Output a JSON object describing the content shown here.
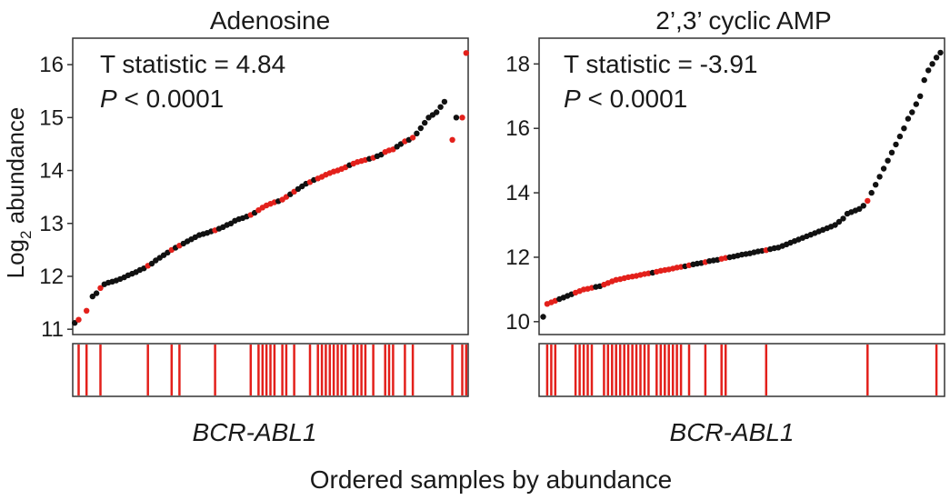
{
  "figure": {
    "ylabel_main": "Log",
    "ylabel_sub": "2",
    "ylabel_rest": " abundance",
    "xlabel": "Ordered samples by abundance"
  },
  "colors": {
    "positive": "#e3201b",
    "negative": "#111111",
    "frame": "#333333"
  },
  "chart_data": [
    {
      "type": "scatter",
      "title": "Adenosine",
      "stat_line": "T statistic = 4.84",
      "p_symbol": "P",
      "p_rest": " < 0.0001",
      "strip_label": "BCR-ABL1",
      "xlim": [
        0,
        1
      ],
      "ylim": [
        10.9,
        16.5
      ],
      "yticks": [
        "11",
        "12",
        "13",
        "14",
        "15",
        "16"
      ],
      "x": [
        0.005,
        0.015,
        0.035,
        0.05,
        0.06,
        0.07,
        0.08,
        0.09,
        0.1,
        0.11,
        0.12,
        0.13,
        0.14,
        0.15,
        0.16,
        0.17,
        0.18,
        0.19,
        0.2,
        0.21,
        0.22,
        0.23,
        0.24,
        0.25,
        0.26,
        0.27,
        0.28,
        0.29,
        0.3,
        0.31,
        0.32,
        0.33,
        0.34,
        0.35,
        0.36,
        0.37,
        0.38,
        0.39,
        0.4,
        0.41,
        0.42,
        0.43,
        0.44,
        0.45,
        0.46,
        0.47,
        0.48,
        0.49,
        0.5,
        0.51,
        0.52,
        0.53,
        0.54,
        0.55,
        0.56,
        0.57,
        0.58,
        0.59,
        0.6,
        0.61,
        0.62,
        0.63,
        0.64,
        0.65,
        0.66,
        0.67,
        0.68,
        0.69,
        0.7,
        0.71,
        0.72,
        0.73,
        0.74,
        0.75,
        0.76,
        0.77,
        0.78,
        0.79,
        0.8,
        0.81,
        0.82,
        0.83,
        0.84,
        0.85,
        0.86,
        0.87,
        0.88,
        0.89,
        0.9,
        0.91,
        0.92,
        0.93,
        0.94,
        0.96,
        0.97,
        0.985,
        0.995
      ],
      "y": [
        11.12,
        11.18,
        11.35,
        11.62,
        11.68,
        11.78,
        11.85,
        11.88,
        11.9,
        11.92,
        11.95,
        11.98,
        12.02,
        12.05,
        12.08,
        12.12,
        12.15,
        12.2,
        12.24,
        12.3,
        12.35,
        12.4,
        12.45,
        12.5,
        12.54,
        12.58,
        12.62,
        12.66,
        12.7,
        12.74,
        12.78,
        12.8,
        12.82,
        12.85,
        12.87,
        12.9,
        12.93,
        12.97,
        13.0,
        13.05,
        13.08,
        13.1,
        13.13,
        13.16,
        13.2,
        13.25,
        13.3,
        13.34,
        13.37,
        13.4,
        13.42,
        13.45,
        13.5,
        13.55,
        13.6,
        13.65,
        13.7,
        13.75,
        13.78,
        13.82,
        13.85,
        13.88,
        13.92,
        13.95,
        13.98,
        14.0,
        14.03,
        14.06,
        14.1,
        14.13,
        14.16,
        14.18,
        14.2,
        14.22,
        14.24,
        14.27,
        14.3,
        14.35,
        14.38,
        14.4,
        14.45,
        14.5,
        14.55,
        14.58,
        14.62,
        14.7,
        14.8,
        14.9,
        15.0,
        15.05,
        15.1,
        15.2,
        15.3,
        14.58,
        15.0,
        15.0,
        16.22
      ],
      "positive": [
        0,
        1,
        1,
        0,
        0,
        1,
        0,
        0,
        0,
        0,
        0,
        0,
        0,
        0,
        0,
        0,
        0,
        1,
        0,
        0,
        0,
        0,
        0,
        1,
        0,
        1,
        0,
        0,
        0,
        0,
        0,
        0,
        0,
        0,
        1,
        0,
        0,
        0,
        0,
        0,
        0,
        0,
        0,
        1,
        0,
        1,
        1,
        1,
        1,
        1,
        0,
        1,
        1,
        0,
        1,
        0,
        0,
        0,
        1,
        0,
        1,
        1,
        1,
        1,
        1,
        1,
        1,
        1,
        0,
        1,
        1,
        1,
        1,
        0,
        1,
        0,
        0,
        1,
        1,
        1,
        0,
        0,
        1,
        0,
        1,
        0,
        0,
        0,
        0,
        0,
        0,
        0,
        0,
        1,
        0,
        1,
        1
      ]
    },
    {
      "type": "scatter",
      "title": "2’,3’ cyclic AMP",
      "stat_line": "T statistic = -3.91",
      "p_symbol": "P",
      "p_rest": " < 0.0001",
      "strip_label": "BCR-ABL1",
      "xlim": [
        0,
        1
      ],
      "ylim": [
        9.6,
        18.8
      ],
      "yticks": [
        "10",
        "12",
        "14",
        "16",
        "18"
      ],
      "x": [
        0.01,
        0.02,
        0.03,
        0.04,
        0.05,
        0.06,
        0.07,
        0.08,
        0.09,
        0.1,
        0.11,
        0.12,
        0.13,
        0.14,
        0.15,
        0.16,
        0.17,
        0.18,
        0.19,
        0.2,
        0.21,
        0.22,
        0.23,
        0.24,
        0.25,
        0.26,
        0.27,
        0.28,
        0.29,
        0.3,
        0.31,
        0.32,
        0.33,
        0.34,
        0.35,
        0.36,
        0.37,
        0.38,
        0.39,
        0.4,
        0.41,
        0.42,
        0.43,
        0.44,
        0.45,
        0.46,
        0.47,
        0.48,
        0.49,
        0.5,
        0.51,
        0.52,
        0.53,
        0.54,
        0.55,
        0.56,
        0.57,
        0.58,
        0.59,
        0.6,
        0.61,
        0.62,
        0.63,
        0.64,
        0.65,
        0.66,
        0.67,
        0.68,
        0.69,
        0.7,
        0.71,
        0.72,
        0.73,
        0.74,
        0.75,
        0.76,
        0.77,
        0.78,
        0.79,
        0.8,
        0.81,
        0.82,
        0.83,
        0.84,
        0.85,
        0.86,
        0.87,
        0.88,
        0.89,
        0.9,
        0.91,
        0.92,
        0.93,
        0.94,
        0.95,
        0.96,
        0.97,
        0.98,
        0.99
      ],
      "y": [
        10.15,
        10.55,
        10.6,
        10.65,
        10.7,
        10.75,
        10.8,
        10.85,
        10.9,
        10.95,
        11.0,
        11.02,
        11.05,
        11.08,
        11.1,
        11.15,
        11.2,
        11.25,
        11.3,
        11.32,
        11.35,
        11.38,
        11.4,
        11.42,
        11.45,
        11.48,
        11.5,
        11.52,
        11.55,
        11.58,
        11.6,
        11.62,
        11.65,
        11.68,
        11.7,
        11.72,
        11.75,
        11.78,
        11.8,
        11.82,
        11.85,
        11.88,
        11.9,
        11.92,
        11.95,
        11.98,
        12.0,
        12.02,
        12.05,
        12.08,
        12.1,
        12.12,
        12.15,
        12.18,
        12.2,
        12.22,
        12.25,
        12.28,
        12.3,
        12.35,
        12.4,
        12.45,
        12.5,
        12.55,
        12.6,
        12.65,
        12.7,
        12.75,
        12.8,
        12.85,
        12.9,
        12.95,
        13.0,
        13.1,
        13.2,
        13.35,
        13.4,
        13.45,
        13.5,
        13.6,
        13.75,
        14.0,
        14.25,
        14.5,
        14.75,
        15.0,
        15.25,
        15.5,
        15.75,
        16.0,
        16.3,
        16.5,
        16.75,
        17.0,
        17.5,
        17.8,
        18.0,
        18.2,
        18.35
      ],
      "positive": [
        0,
        1,
        1,
        1,
        0,
        0,
        0,
        0,
        1,
        1,
        1,
        1,
        1,
        0,
        0,
        1,
        1,
        1,
        1,
        1,
        1,
        1,
        1,
        1,
        1,
        1,
        1,
        0,
        1,
        1,
        1,
        1,
        1,
        1,
        1,
        0,
        1,
        0,
        0,
        0,
        1,
        0,
        0,
        0,
        1,
        1,
        0,
        0,
        0,
        0,
        0,
        0,
        0,
        0,
        0,
        1,
        0,
        0,
        0,
        0,
        0,
        0,
        0,
        0,
        0,
        0,
        0,
        0,
        0,
        0,
        0,
        0,
        0,
        0,
        0,
        0,
        0,
        0,
        0,
        0,
        1,
        0,
        0,
        0,
        0,
        0,
        0,
        0,
        0,
        0,
        0,
        0,
        0,
        0,
        0,
        0,
        0,
        0,
        0
      ],
      "strip_extra_x": [
        0.98
      ]
    }
  ]
}
